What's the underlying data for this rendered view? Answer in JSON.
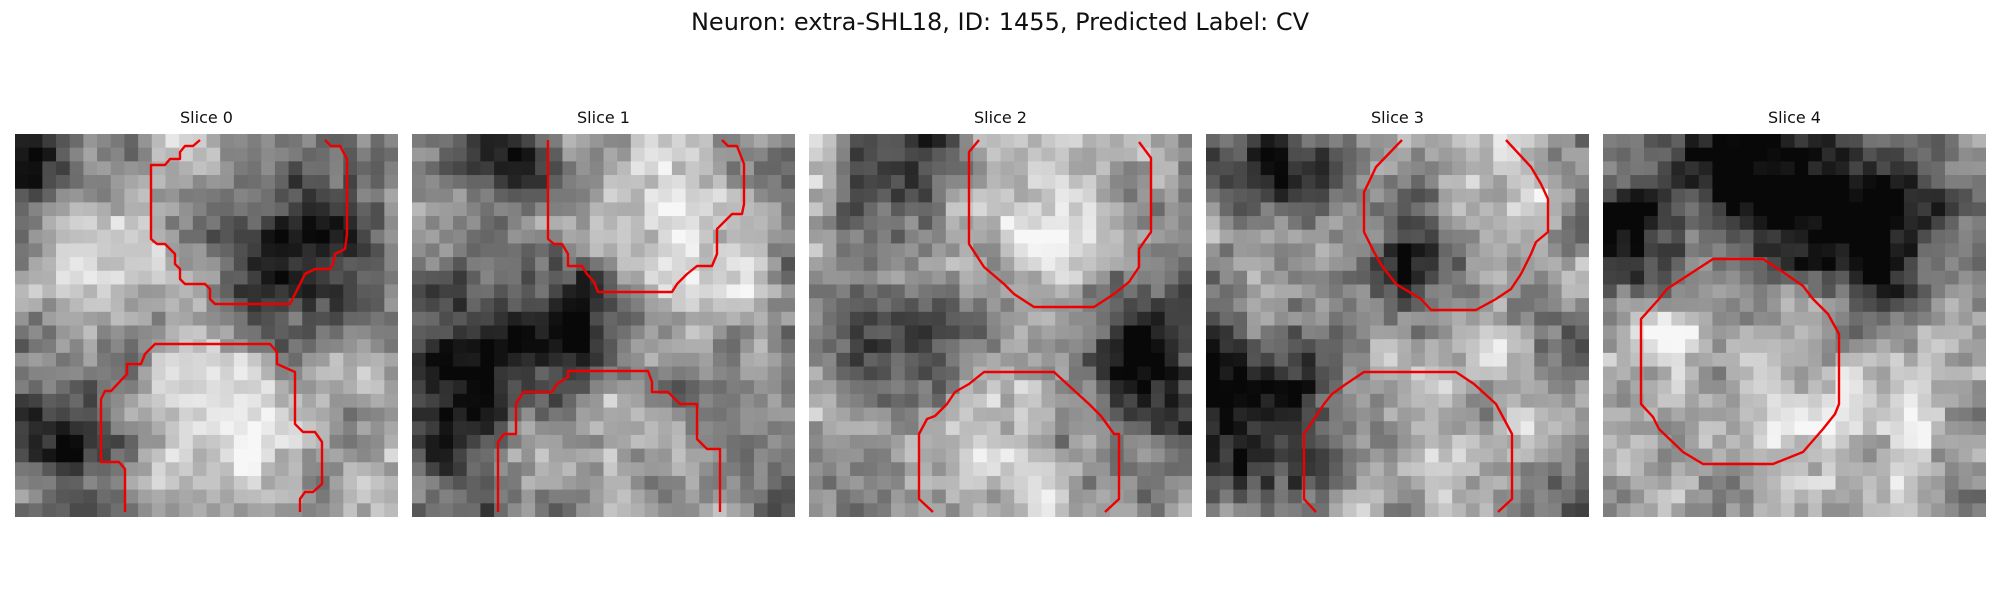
{
  "figure": {
    "title": "Neuron: extra-SHL18, ID: 1455, Predicted Label: CV"
  },
  "panels": [
    {
      "title": "Slice 0",
      "seed": 11,
      "dark_spots": [
        [
          0.08,
          0.04,
          0.12
        ],
        [
          0.72,
          0.33,
          0.14
        ],
        [
          0.15,
          0.78,
          0.1
        ]
      ],
      "light_spots": [
        [
          0.28,
          0.26,
          0.18
        ],
        [
          0.58,
          0.74,
          0.2
        ]
      ],
      "contour_color": "#ee0000"
    },
    {
      "title": "Slice 1",
      "seed": 23,
      "dark_spots": [
        [
          0.27,
          0.03,
          0.1
        ],
        [
          0.36,
          0.55,
          0.16
        ],
        [
          0.07,
          0.72,
          0.12
        ]
      ],
      "light_spots": [
        [
          0.58,
          0.13,
          0.18
        ],
        [
          0.72,
          0.38,
          0.14
        ],
        [
          0.42,
          0.76,
          0.16
        ]
      ],
      "contour_color": "#ee0000"
    },
    {
      "title": "Slice 2",
      "seed": 37,
      "dark_spots": [
        [
          0.26,
          0.08,
          0.1
        ],
        [
          0.28,
          0.48,
          0.16
        ],
        [
          0.88,
          0.6,
          0.14
        ]
      ],
      "light_spots": [
        [
          0.22,
          0.29,
          0.2
        ],
        [
          0.55,
          0.22,
          0.2
        ],
        [
          0.45,
          0.78,
          0.22
        ]
      ],
      "contour_color": "#ee0000"
    },
    {
      "title": "Slice 3",
      "seed": 53,
      "dark_spots": [
        [
          0.13,
          0.7,
          0.18
        ],
        [
          0.55,
          0.3,
          0.12
        ],
        [
          0.18,
          0.09,
          0.12
        ]
      ],
      "light_spots": [
        [
          0.7,
          0.22,
          0.18
        ],
        [
          0.6,
          0.78,
          0.2
        ],
        [
          0.22,
          0.34,
          0.18
        ]
      ],
      "contour_color": "#ee0000"
    },
    {
      "title": "Slice 4",
      "seed": 71,
      "dark_spots": [
        [
          0.38,
          0.09,
          0.14
        ],
        [
          0.65,
          0.25,
          0.18
        ],
        [
          0.05,
          0.25,
          0.1
        ]
      ],
      "light_spots": [
        [
          0.33,
          0.56,
          0.22
        ],
        [
          0.75,
          0.75,
          0.18
        ]
      ],
      "contour_color": "#ee0000"
    }
  ]
}
